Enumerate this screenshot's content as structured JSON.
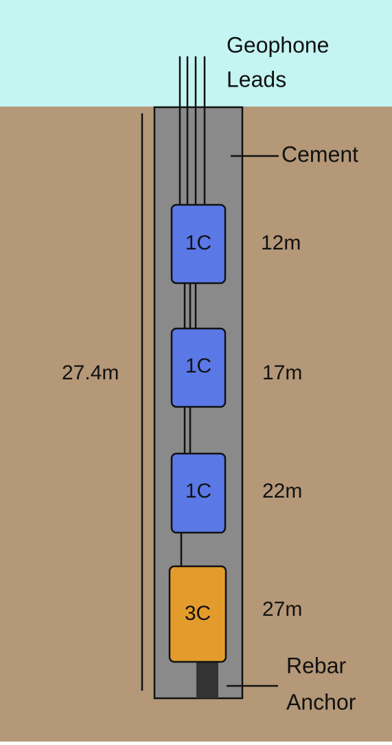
{
  "labels": {
    "geophone_line1": "Geophone",
    "geophone_line2": "Leads",
    "cement": "Cement",
    "total_depth": "27.4m",
    "rebar_line1": "Rebar",
    "rebar_line2": "Anchor"
  },
  "sensors": [
    {
      "type": "1C",
      "depth": "12m",
      "color": "#5a78e6"
    },
    {
      "type": "1C",
      "depth": "17m",
      "color": "#5a78e6"
    },
    {
      "type": "1C",
      "depth": "22m",
      "color": "#5a78e6"
    },
    {
      "type": "3C",
      "depth": "27m",
      "color": "#e39c2c"
    }
  ],
  "colors": {
    "sky": "#c4f5f2",
    "soil": "#b49878",
    "cement": "#8a8a8a",
    "rebar": "#333333"
  }
}
